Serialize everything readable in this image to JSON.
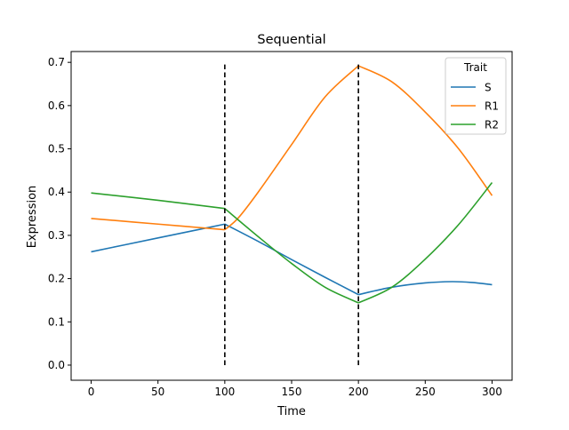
{
  "chart_data": {
    "type": "line",
    "title": "Sequential",
    "xlabel": "Time",
    "ylabel": "Expression",
    "xlim": [
      -15,
      315
    ],
    "ylim": [
      -0.035,
      0.725
    ],
    "xticks": [
      0,
      50,
      100,
      150,
      200,
      250,
      300
    ],
    "yticks": [
      0.0,
      0.1,
      0.2,
      0.3,
      0.4,
      0.5,
      0.6,
      0.7
    ],
    "grid": false,
    "legend": {
      "title": "Trait",
      "placement": "top-right"
    },
    "vlines": [
      {
        "x": 100,
        "y0": 0.0,
        "y1": 0.695,
        "style": "dashed",
        "color": "#000000"
      },
      {
        "x": 200,
        "y0": 0.0,
        "y1": 0.695,
        "style": "dashed",
        "color": "#000000"
      }
    ],
    "series": [
      {
        "name": "S",
        "color": "#1f77b4",
        "x": [
          0,
          25,
          50,
          75,
          100,
          125,
          150,
          175,
          200,
          225,
          250,
          270,
          285,
          300
        ],
        "y": [
          0.262,
          0.278,
          0.294,
          0.31,
          0.326,
          0.286,
          0.244,
          0.203,
          0.163,
          0.18,
          0.19,
          0.193,
          0.191,
          0.186
        ]
      },
      {
        "name": "R1",
        "color": "#ff7f0e",
        "x": [
          0,
          50,
          100,
          110,
          125,
          150,
          175,
          200,
          225,
          250,
          275,
          300
        ],
        "y": [
          0.339,
          0.326,
          0.313,
          0.34,
          0.4,
          0.51,
          0.62,
          0.692,
          0.655,
          0.585,
          0.5,
          0.392
        ]
      },
      {
        "name": "R2",
        "color": "#2ca02c",
        "x": [
          0,
          50,
          100,
          125,
          150,
          175,
          200,
          225,
          250,
          275,
          300
        ],
        "y": [
          0.398,
          0.381,
          0.362,
          0.297,
          0.235,
          0.18,
          0.144,
          0.18,
          0.245,
          0.325,
          0.422
        ]
      }
    ]
  }
}
